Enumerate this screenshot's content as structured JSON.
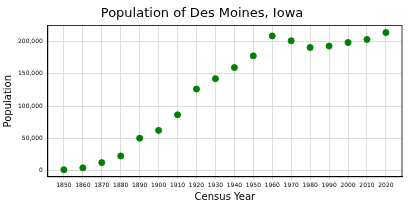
{
  "chart_data": {
    "type": "scatter",
    "title": "Population of Des Moines, Iowa",
    "x_label": "Census Year",
    "y_label": "Population",
    "x": [
      1850,
      1860,
      1870,
      1880,
      1890,
      1900,
      1910,
      1920,
      1930,
      1940,
      1950,
      1960,
      1970,
      1980,
      1990,
      2000,
      2010,
      2020
    ],
    "values": [
      986,
      3965,
      12035,
      22408,
      50093,
      62139,
      86368,
      126468,
      142559,
      159819,
      177965,
      208982,
      201404,
      191003,
      193187,
      198682,
      203433,
      214133
    ],
    "color": "#008000",
    "marker": "circle",
    "xlim": [
      1841.5,
      2028.5
    ],
    "xticks": [
      1850,
      1860,
      1870,
      1880,
      1890,
      1900,
      1910,
      1920,
      1930,
      1940,
      1950,
      1960,
      1970,
      1980,
      1990,
      2000,
      2010,
      2020
    ],
    "ylim": [
      -10000,
      225000
    ],
    "yticks": [
      {
        "value": 0,
        "label": "0"
      },
      {
        "value": 50000,
        "label": "50,000"
      },
      {
        "value": 100000,
        "label": "100,000"
      },
      {
        "value": 150000,
        "label": "150,000"
      },
      {
        "value": 200000,
        "label": "200,000"
      }
    ],
    "grid": true
  }
}
